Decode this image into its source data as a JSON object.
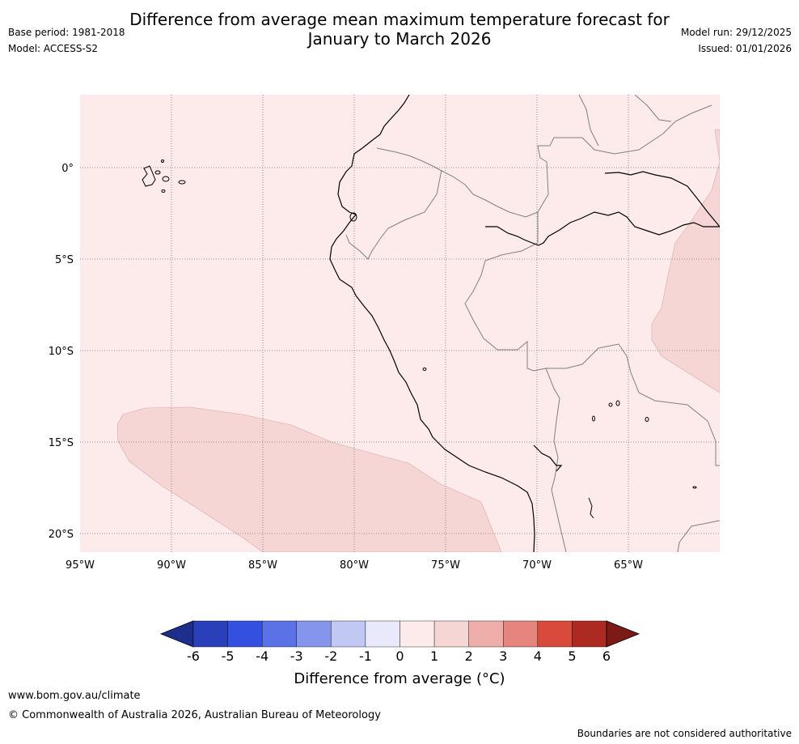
{
  "title": {
    "line1": "Difference from average mean maximum temperature forecast for",
    "line2": "January to March 2026"
  },
  "meta": {
    "base_period": "Base period: 1981-2018",
    "model": "Model: ACCESS-S2",
    "model_run": "Model run: 29/12/2025",
    "issued": "Issued: 01/01/2026"
  },
  "map": {
    "lon_labels": [
      "95°W",
      "90°W",
      "85°W",
      "80°W",
      "75°W",
      "70°W",
      "65°W"
    ],
    "lat_labels": [
      "0°",
      "5°S",
      "10°S",
      "15°S",
      "20°S"
    ],
    "colors": {
      "background_class": "#fcebea",
      "anomaly_1_2": "#f5d6d5",
      "coastline": "#000000",
      "border": "#808080",
      "grid": "#777777"
    }
  },
  "colorbar": {
    "ticks": [
      "-6",
      "-5",
      "-4",
      "-3",
      "-2",
      "-1",
      "0",
      "1",
      "2",
      "3",
      "4",
      "5",
      "6"
    ],
    "colors": [
      "#1e2e8c",
      "#2a3fba",
      "#3450e0",
      "#5b72e6",
      "#8595ec",
      "#c1c8f4",
      "#e8eafb",
      "#fcebea",
      "#f5d6d5",
      "#eeaeaa",
      "#e5857d",
      "#da4a3c",
      "#ad2a22",
      "#7c1a16"
    ],
    "label": "Difference from average (°C)"
  },
  "footer": {
    "website": "www.bom.gov.au/climate",
    "copyright": "© Commonwealth of Australia 2026, Australian Bureau of Meteorology",
    "disclaimer": "Boundaries are not considered authoritative"
  }
}
